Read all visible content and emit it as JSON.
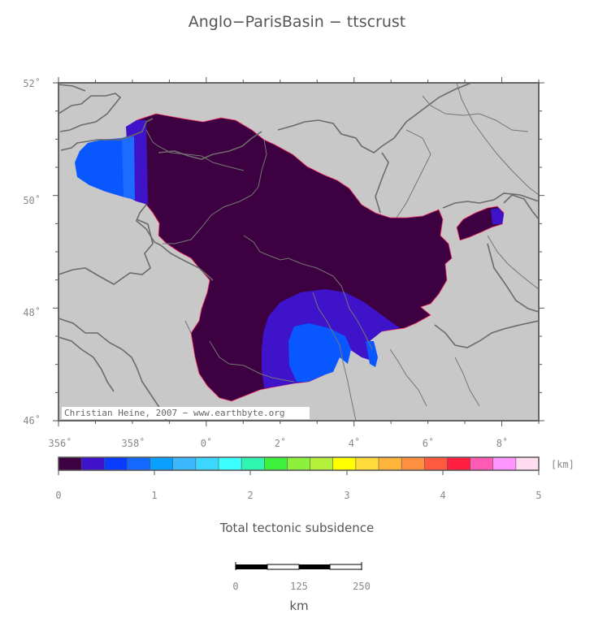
{
  "title": "Anglo−ParisBasin − ttscrust",
  "map": {
    "lon_ticks": [
      "356˚",
      "358˚",
      "0˚",
      "2˚",
      "4˚",
      "6˚",
      "8˚"
    ],
    "lat_ticks": [
      "52˚",
      "50˚",
      "48˚",
      "46˚"
    ],
    "credit": "Christian Heine, 2007 − www.earthbyte.org",
    "colors": {
      "land": "#c8c8c8",
      "basin_max": "#3d0040",
      "mid": "#3f13c9",
      "light": "#0957ff",
      "lighter": "#1e6bff",
      "border": "#6b6b6b",
      "rivers": "#767676"
    }
  },
  "colorbar": {
    "unit": "[km]",
    "tick_labels": [
      "0",
      "1",
      "2",
      "3",
      "4",
      "5"
    ],
    "caption": "Total tectonic subsidence",
    "colors": [
      "#3d0040",
      "#3f13c9",
      "#0a3cff",
      "#1268ff",
      "#0aa0ff",
      "#3cb8ff",
      "#3cd7ff",
      "#3cffff",
      "#30f5b0",
      "#3cf03c",
      "#8cf03c",
      "#b4f03c",
      "#ffff00",
      "#ffdc3c",
      "#ffb43c",
      "#ff9040",
      "#ff5a40",
      "#ff1e40",
      "#ff5ab4",
      "#ff96ff",
      "#ffdcf0"
    ]
  },
  "scalebar": {
    "labels": [
      "0",
      "125",
      "250"
    ],
    "unit": "km"
  }
}
